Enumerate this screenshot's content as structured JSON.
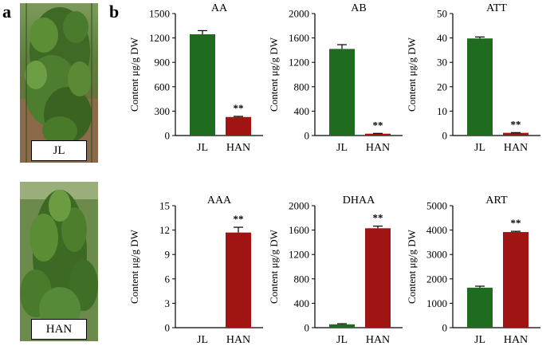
{
  "panels": {
    "a": "a",
    "b": "b"
  },
  "photos": [
    {
      "label": "JL"
    },
    {
      "label": "HAN"
    }
  ],
  "colors": {
    "JL": "#1f6b1f",
    "HAN": "#a11414",
    "errorbar": "#000000"
  },
  "chart_data": [
    {
      "type": "bar",
      "title": "AA",
      "categories": [
        "JL",
        "HAN"
      ],
      "values": [
        1245,
        228
      ],
      "errors": [
        45,
        8
      ],
      "ylabel": "Content μg/g DW",
      "ylim": [
        0,
        1500
      ],
      "yticks": [
        0,
        300,
        600,
        900,
        1200,
        1500
      ],
      "annotations": [
        "",
        "**"
      ]
    },
    {
      "type": "bar",
      "title": "AB",
      "categories": [
        "JL",
        "HAN"
      ],
      "values": [
        1420,
        30
      ],
      "errors": [
        70,
        5
      ],
      "ylabel": "Content μg/g DW",
      "ylim": [
        0,
        2000
      ],
      "yticks": [
        0,
        400,
        800,
        1200,
        1600,
        2000
      ],
      "annotations": [
        "",
        "**"
      ]
    },
    {
      "type": "bar",
      "title": "ATT",
      "categories": [
        "JL",
        "HAN"
      ],
      "values": [
        39.8,
        1.1
      ],
      "errors": [
        0.6,
        0.1
      ],
      "ylabel": "Content μg/g DW",
      "ylim": [
        0,
        50
      ],
      "yticks": [
        0,
        10,
        20,
        30,
        40,
        50
      ],
      "annotations": [
        "",
        "**"
      ]
    },
    {
      "type": "bar",
      "title": "AAA",
      "categories": [
        "JL",
        "HAN"
      ],
      "values": [
        0,
        11.7
      ],
      "errors": [
        0,
        0.65
      ],
      "ylabel": "Content μg/g DW",
      "ylim": [
        0,
        15
      ],
      "yticks": [
        0,
        3,
        6,
        9,
        12,
        15
      ],
      "annotations": [
        "",
        "**"
      ]
    },
    {
      "type": "bar",
      "title": "DHAA",
      "categories": [
        "JL",
        "HAN"
      ],
      "values": [
        55,
        1630
      ],
      "errors": [
        10,
        35
      ],
      "ylabel": "Content μg/g DW",
      "ylim": [
        0,
        2000
      ],
      "yticks": [
        0,
        400,
        800,
        1200,
        1600,
        2000
      ],
      "annotations": [
        "",
        "**"
      ]
    },
    {
      "type": "bar",
      "title": "ART",
      "categories": [
        "JL",
        "HAN"
      ],
      "values": [
        1640,
        3920
      ],
      "errors": [
        60,
        30
      ],
      "ylabel": "Content μg/g DW",
      "ylim": [
        0,
        5000
      ],
      "yticks": [
        0,
        1000,
        2000,
        3000,
        4000,
        5000
      ],
      "annotations": [
        "",
        "**"
      ]
    }
  ]
}
